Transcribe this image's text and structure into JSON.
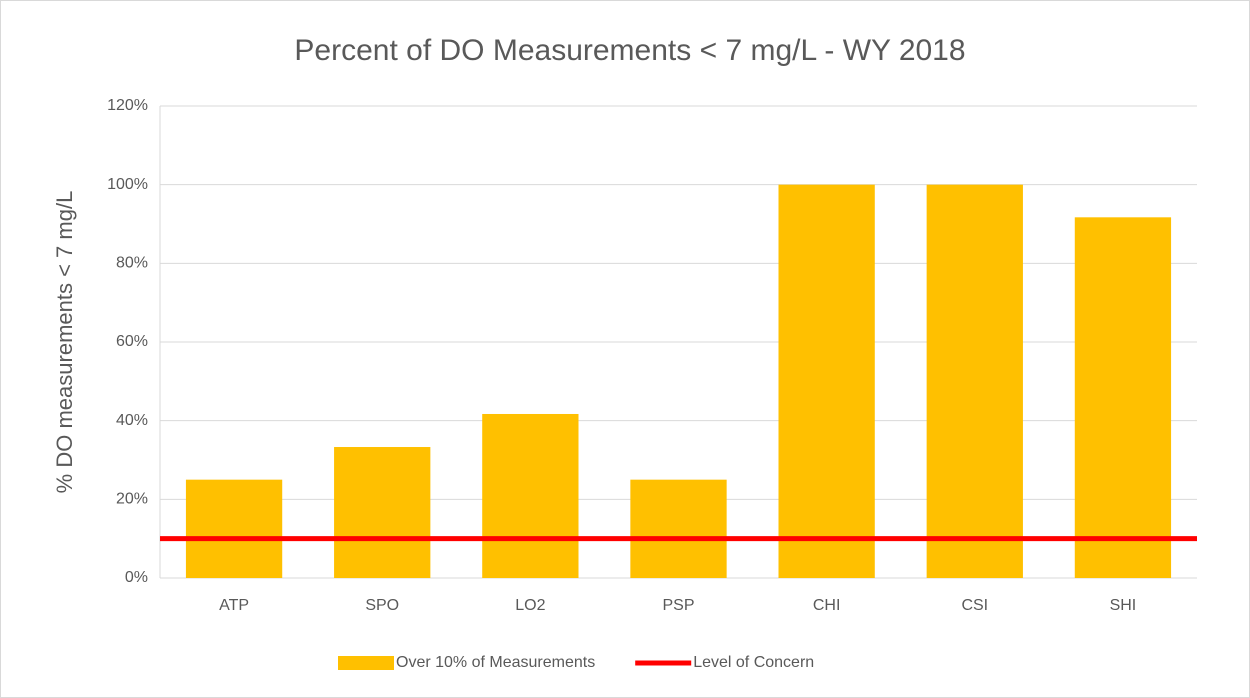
{
  "chart_data": {
    "type": "bar",
    "title": "Percent of DO Measurements < 7 mg/L - WY 2018",
    "y_label": "% DO measurements < 7 mg/L",
    "categories": [
      "ATP",
      "SPO",
      "LO2",
      "PSP",
      "CHI",
      "CSI",
      "SHI"
    ],
    "series": [
      {
        "name": "Over 10% of Measurements",
        "type": "bar",
        "color": "#ffc000",
        "values": [
          25,
          33.3,
          41.7,
          25,
          100,
          100,
          91.7
        ]
      },
      {
        "name": "Level of Concern",
        "type": "line",
        "color": "#ff0000",
        "values": [
          10,
          10,
          10,
          10,
          10,
          10,
          10
        ]
      }
    ],
    "ylim": [
      0,
      120
    ],
    "yticks": [
      {
        "value": 0,
        "label": "0%"
      },
      {
        "value": 20,
        "label": "20%"
      },
      {
        "value": 40,
        "label": "40%"
      },
      {
        "value": 60,
        "label": "60%"
      },
      {
        "value": 80,
        "label": "80%"
      },
      {
        "value": 100,
        "label": "100%"
      },
      {
        "value": 120,
        "label": "120%"
      }
    ],
    "grid": true,
    "legend": "bottom"
  }
}
